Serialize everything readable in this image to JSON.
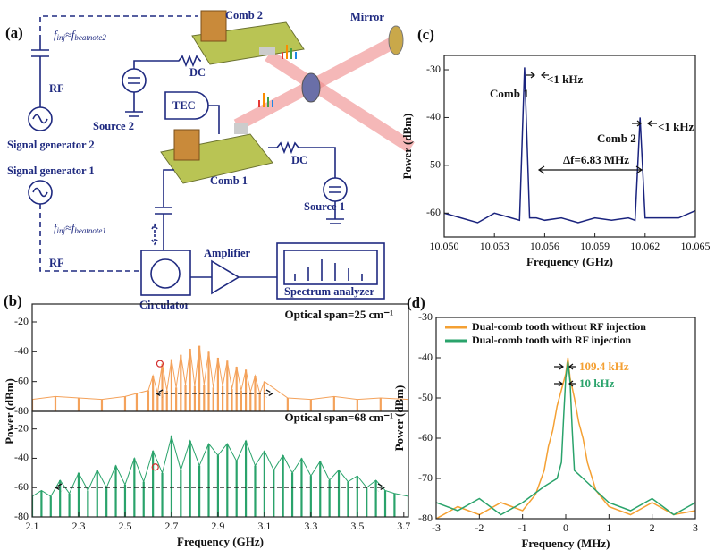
{
  "diagram": {
    "label": "(a)",
    "comb2": "Comb 2",
    "mirror": "Mirror",
    "dc_top": "DC",
    "source2": "Source 2",
    "tec": "TEC",
    "rf_top": "RF",
    "siggen2": "Signal generator 2",
    "siggen1": "Signal generator 1",
    "comb1": "Comb 1",
    "dc_bottom": "DC",
    "source1": "Source 1",
    "rf_bottom": "RF",
    "amplifier": "Amplifier",
    "analyzer": "Spectrum analyzer",
    "circulator": "Circulator",
    "finj2": [
      "f",
      "inj",
      "≈f",
      "beatnote2"
    ],
    "finj1": [
      "f",
      "inj",
      "≈f",
      "beatnote1"
    ]
  },
  "chart_data": [
    {
      "type": "stem",
      "label": "(b)",
      "annotations": [
        "Optical span=25 cm⁻¹"
      ],
      "xlim": [
        2.1,
        3.72
      ],
      "ylim": [
        -80,
        -8
      ],
      "yticks": [
        -20,
        -40,
        -60,
        -80
      ],
      "marker": {
        "x": 2.65,
        "y": -48
      },
      "series": [
        {
          "color": "#f4a25b",
          "x": [
            2.1,
            2.2,
            2.3,
            2.4,
            2.5,
            2.55,
            2.6,
            2.62,
            2.64,
            2.66,
            2.68,
            2.7,
            2.72,
            2.74,
            2.76,
            2.78,
            2.8,
            2.82,
            2.84,
            2.86,
            2.88,
            2.9,
            2.92,
            2.94,
            2.96,
            2.98,
            3.0,
            3.02,
            3.04,
            3.06,
            3.08,
            3.1,
            3.2,
            3.3,
            3.4,
            3.5,
            3.6,
            3.72
          ],
          "values": [
            -72,
            -70,
            -71,
            -72,
            -70,
            -68,
            -66,
            -56,
            -68,
            -48,
            -66,
            -45,
            -64,
            -42,
            -62,
            -38,
            -63,
            -36,
            -62,
            -40,
            -64,
            -44,
            -63,
            -46,
            -65,
            -50,
            -66,
            -52,
            -67,
            -56,
            -68,
            -60,
            -71,
            -72,
            -70,
            -72,
            -71,
            -72
          ]
        }
      ]
    },
    {
      "type": "stem",
      "annotations": [
        "Optical span=68 cm⁻¹"
      ],
      "xlabel": "Frequency  (GHz)",
      "ylabel": "Power (dBm)",
      "xlim": [
        2.1,
        3.72
      ],
      "ylim": [
        -80,
        -8
      ],
      "xticks": [
        2.1,
        2.3,
        2.5,
        2.7,
        2.9,
        3.1,
        3.3,
        3.5,
        3.7
      ],
      "yticks": [
        -20,
        -40,
        -60,
        -80
      ],
      "marker": {
        "x": 2.63,
        "y": -46
      },
      "series": [
        {
          "color": "#2aa36b",
          "x": [
            2.1,
            2.14,
            2.18,
            2.22,
            2.26,
            2.3,
            2.34,
            2.38,
            2.42,
            2.46,
            2.5,
            2.54,
            2.58,
            2.62,
            2.66,
            2.7,
            2.74,
            2.78,
            2.82,
            2.86,
            2.9,
            2.94,
            2.98,
            3.02,
            3.06,
            3.1,
            3.14,
            3.18,
            3.22,
            3.26,
            3.3,
            3.34,
            3.38,
            3.42,
            3.46,
            3.5,
            3.54,
            3.58,
            3.62,
            3.66,
            3.72
          ],
          "values": [
            -66,
            -62,
            -66,
            -55,
            -64,
            -50,
            -62,
            -48,
            -60,
            -45,
            -58,
            -40,
            -56,
            -35,
            -50,
            -25,
            -48,
            -28,
            -45,
            -30,
            -38,
            -30,
            -42,
            -28,
            -45,
            -35,
            -48,
            -38,
            -50,
            -40,
            -52,
            -42,
            -55,
            -48,
            -56,
            -52,
            -60,
            -55,
            -62,
            -64,
            -66
          ]
        }
      ]
    },
    {
      "type": "line",
      "label": "(c)",
      "xlabel": "Frequency (GHz)",
      "ylabel": "Power (dBm)",
      "annotations": [
        "Comb 1",
        "<1 kHz",
        "Comb 2",
        "<1 kHz",
        "Δf=6.83 MHz"
      ],
      "xlim": [
        10.05,
        10.065
      ],
      "ylim": [
        -65,
        -27
      ],
      "xticks": [
        {
          "value": 10.05,
          "label": "10.050"
        },
        10.053,
        10.056,
        10.059,
        10.062,
        {
          "value": 10.065,
          "label": "10.065"
        }
      ],
      "yticks": [
        -30,
        -40,
        -50,
        -60
      ],
      "series": [
        {
          "color": "#1a237e",
          "x": [
            10.05,
            10.051,
            10.052,
            10.053,
            10.054,
            10.0545,
            10.0548,
            10.0551,
            10.0555,
            10.056,
            10.057,
            10.058,
            10.059,
            10.06,
            10.061,
            10.0614,
            10.0617,
            10.062,
            10.063,
            10.064,
            10.065
          ],
          "values": [
            -60,
            -61,
            -62,
            -60,
            -61,
            -61.5,
            -29.5,
            -61,
            -61,
            -61.5,
            -61,
            -62,
            -61,
            -61.5,
            -61,
            -61.5,
            -40,
            -61,
            -61,
            -61,
            -59.5
          ]
        }
      ]
    },
    {
      "type": "line",
      "label": "(d)",
      "xlabel": "Frequency (MHz)",
      "ylabel": "Power (dBm)",
      "annotations": [
        "109.4 kHz",
        "10 kHz"
      ],
      "xlim": [
        -3,
        3
      ],
      "ylim": [
        -80,
        -30
      ],
      "xticks": [
        -3,
        -2,
        -1,
        0,
        1,
        2,
        3
      ],
      "yticks": [
        -30,
        -40,
        -50,
        -60,
        -70,
        -80
      ],
      "series": [
        {
          "name": "Dual-comb tooth without RF injection",
          "color": "#f4a033",
          "x": [
            -3,
            -2.5,
            -2,
            -1.5,
            -1,
            -0.7,
            -0.5,
            -0.4,
            -0.3,
            -0.2,
            -0.1,
            0,
            0.05,
            0.1,
            0.2,
            0.3,
            0.4,
            0.5,
            0.7,
            1,
            1.5,
            2,
            2.5,
            3
          ],
          "values": [
            -80,
            -77,
            -79,
            -76,
            -78,
            -74,
            -68,
            -62,
            -58,
            -52,
            -48,
            -44,
            -40,
            -45,
            -50,
            -56,
            -60,
            -66,
            -73,
            -77,
            -79,
            -76,
            -79,
            -78
          ]
        },
        {
          "name": "Dual-comb tooth with RF injection",
          "color": "#2aa36b",
          "x": [
            -3,
            -2.5,
            -2,
            -1.5,
            -1,
            -0.5,
            -0.2,
            -0.1,
            -0.05,
            0,
            0.05,
            0.1,
            0.15,
            0.2,
            0.5,
            1,
            1.5,
            2,
            2.5,
            3
          ],
          "values": [
            -76,
            -78,
            -75,
            -79,
            -76,
            -72,
            -70,
            -66,
            -55,
            -45,
            -41,
            -46,
            -58,
            -68,
            -71,
            -76,
            -78,
            -75,
            -79,
            -76
          ]
        }
      ]
    }
  ]
}
